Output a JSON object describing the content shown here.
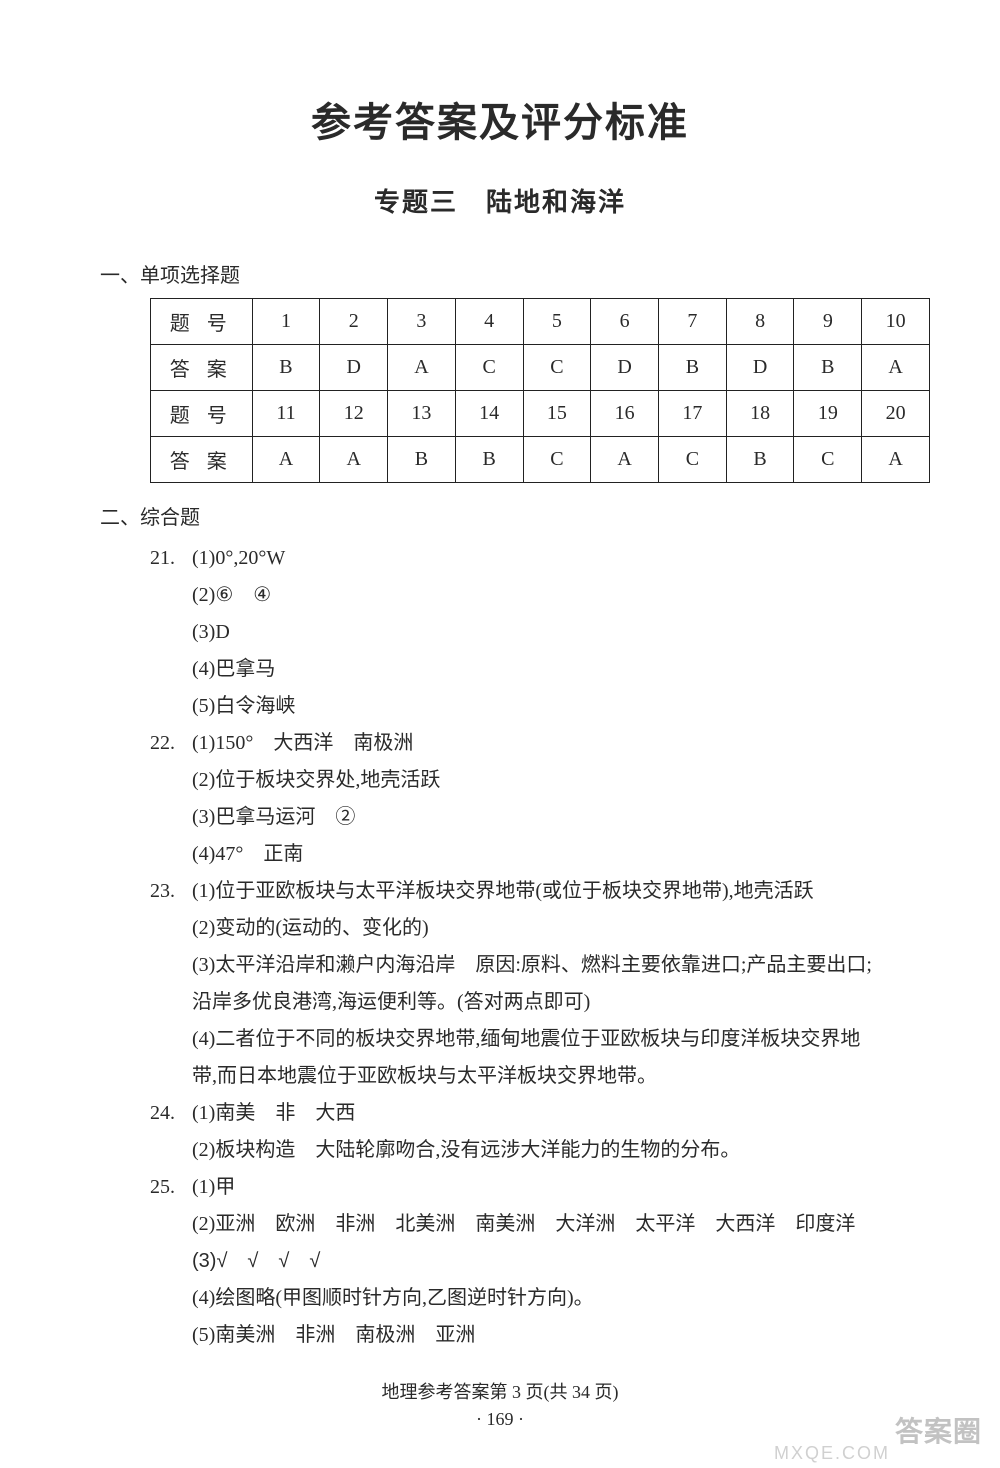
{
  "title_main": "参考答案及评分标准",
  "title_sub": "专题三　陆地和海洋",
  "sec1_heading": "一、单项选择题",
  "table": {
    "label_q": "题 号",
    "label_a": "答 案",
    "row1_nums": [
      "1",
      "2",
      "3",
      "4",
      "5",
      "6",
      "7",
      "8",
      "9",
      "10"
    ],
    "row1_ans": [
      "B",
      "D",
      "A",
      "C",
      "C",
      "D",
      "B",
      "D",
      "B",
      "A"
    ],
    "row2_nums": [
      "11",
      "12",
      "13",
      "14",
      "15",
      "16",
      "17",
      "18",
      "19",
      "20"
    ],
    "row2_ans": [
      "A",
      "A",
      "B",
      "B",
      "C",
      "A",
      "C",
      "B",
      "C",
      "A"
    ]
  },
  "sec2_heading": "二、综合题",
  "q21": {
    "num": "21.",
    "l1": "(1)0°,20°W",
    "l2": "(2)⑥　④",
    "l3": "(3)D",
    "l4": "(4)巴拿马",
    "l5": "(5)白令海峡"
  },
  "q22": {
    "num": "22.",
    "l1": "(1)150°　大西洋　南极洲",
    "l2": "(2)位于板块交界处,地壳活跃",
    "l3": "(3)巴拿马运河　②",
    "l4": "(4)47°　正南"
  },
  "q23": {
    "num": "23.",
    "l1": "(1)位于亚欧板块与太平洋板块交界地带(或位于板块交界地带),地壳活跃",
    "l2": "(2)变动的(运动的、变化的)",
    "l3a": "(3)太平洋沿岸和濑户内海沿岸　原因:原料、燃料主要依靠进口;产品主要出口;",
    "l3b": "沿岸多优良港湾,海运便利等。(答对两点即可)",
    "l4a": "(4)二者位于不同的板块交界地带,缅甸地震位于亚欧板块与印度洋板块交界地",
    "l4b": "带,而日本地震位于亚欧板块与太平洋板块交界地带。"
  },
  "q24": {
    "num": "24.",
    "l1": "(1)南美　非　大西",
    "l2": "(2)板块构造　大陆轮廓吻合,没有远涉大洋能力的生物的分布。"
  },
  "q25": {
    "num": "25.",
    "l1": "(1)甲",
    "l2": "(2)亚洲　欧洲　非洲　北美洲　南美洲　大洋洲　太平洋　大西洋　印度洋",
    "l3": "(3)√　√　√　√",
    "l4": "(4)绘图略(甲图顺时针方向,乙图逆时针方向)。",
    "l5": "(5)南美洲　非洲　南极洲　亚洲"
  },
  "footer_text": "地理参考答案第 3 页(共 34 页)",
  "page_number": "· 169 ·",
  "watermark_cn": "答案圈",
  "watermark_en": "MXQE.COM"
}
